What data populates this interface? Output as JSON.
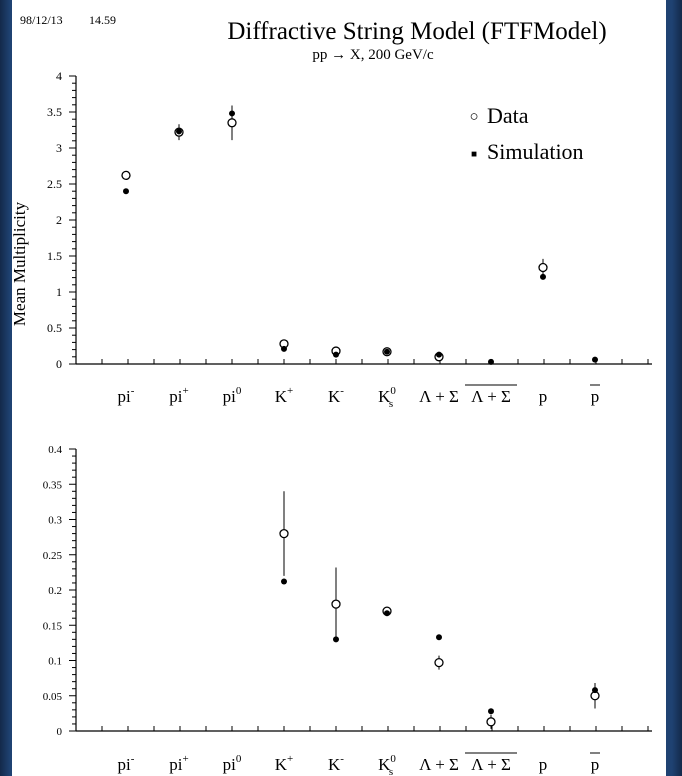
{
  "header": {
    "date": "98/12/13",
    "time": "14.59",
    "title": "Diffractive String Model (FTFModel)",
    "subtitle": "pp → X, 200 GeV/c"
  },
  "legend": {
    "data_label": "Data",
    "sim_label": "Simulation",
    "data_symbol": "○",
    "sim_symbol": "■"
  },
  "colors": {
    "background": "#ffffff",
    "frame": "#1f4272",
    "ink": "#000000"
  },
  "categories": [
    {
      "base": "pi",
      "sup": "-",
      "sub": "",
      "bar": false
    },
    {
      "base": "pi",
      "sup": "+",
      "sub": "",
      "bar": false
    },
    {
      "base": "pi",
      "sup": "0",
      "sub": "",
      "bar": false
    },
    {
      "base": "K",
      "sup": "+",
      "sub": "",
      "bar": false
    },
    {
      "base": "K",
      "sup": "-",
      "sub": "",
      "bar": false
    },
    {
      "base": "K",
      "sup": "0",
      "sub": "s",
      "bar": false
    },
    {
      "base": "Λ + Σ",
      "sup": "",
      "sub": "",
      "bar": false
    },
    {
      "base": "Λ + Σ",
      "sup": "",
      "sub": "",
      "bar": true
    },
    {
      "base": "p",
      "sup": "",
      "sub": "",
      "bar": false
    },
    {
      "base": "p",
      "sup": "",
      "sub": "",
      "bar": true
    }
  ],
  "chart_data": [
    {
      "type": "scatter",
      "ylabel": "Mean Multiplicity",
      "ylim": [
        0,
        4
      ],
      "yticks": [
        "0",
        "0.5",
        "1",
        "1.5",
        "2",
        "2.5",
        "3",
        "3.5",
        "4"
      ],
      "categories": [
        "pi-",
        "pi+",
        "pi0",
        "K+",
        "K-",
        "Ks0",
        "Λ+Σ",
        "anti-Λ+anti-Σ",
        "p",
        "anti-p"
      ],
      "series": [
        {
          "name": "Data",
          "values": [
            2.62,
            3.22,
            3.35,
            0.28,
            0.18,
            0.17,
            0.1,
            null,
            1.34,
            null
          ],
          "errors": [
            0.06,
            0.11,
            0.24,
            0.06,
            0.05,
            0.01,
            0.01,
            null,
            0.12,
            null
          ]
        },
        {
          "name": "Simulation",
          "values": [
            2.4,
            3.23,
            3.48,
            0.21,
            0.13,
            0.17,
            0.13,
            0.03,
            1.21,
            0.06
          ]
        }
      ],
      "legend_position": "top-right"
    },
    {
      "type": "scatter",
      "ylabel": "",
      "ylim": [
        0,
        0.4
      ],
      "yticks": [
        "0",
        "0.05",
        "0.1",
        "0.15",
        "0.2",
        "0.25",
        "0.3",
        "0.35",
        "0.4"
      ],
      "categories": [
        "pi-",
        "pi+",
        "pi0",
        "K+",
        "K-",
        "Ks0",
        "Λ+Σ",
        "anti-Λ+anti-Σ",
        "p",
        "anti-p"
      ],
      "series": [
        {
          "name": "Data",
          "values": [
            null,
            null,
            null,
            0.28,
            0.18,
            0.17,
            0.097,
            0.013,
            null,
            0.05
          ],
          "errors": [
            null,
            null,
            null,
            0.06,
            0.052,
            0.006,
            0.01,
            0.01,
            null,
            0.018
          ]
        },
        {
          "name": "Simulation",
          "values": [
            null,
            null,
            null,
            0.212,
            0.13,
            0.167,
            0.133,
            0.028,
            null,
            0.058
          ]
        }
      ]
    }
  ]
}
